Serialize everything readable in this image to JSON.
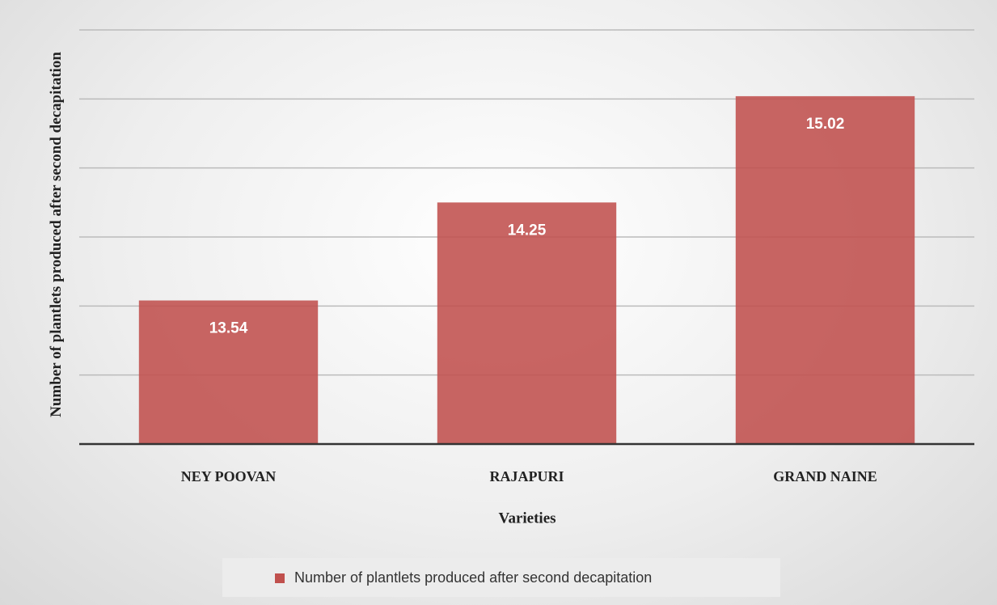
{
  "chart_data": {
    "type": "bar",
    "categories": [
      "NEY POOVAN",
      "RAJAPURI",
      "GRAND NAINE"
    ],
    "values": [
      13.54,
      14.25,
      15.02
    ],
    "color": "#c0504d",
    "x_label": "Varieties",
    "y_label": "Number of plantlets produced after second decapitation",
    "legend": "Number of plantlets produced after second decapitation",
    "ylim": [
      12.5,
      15.5
    ],
    "yticks": [
      12.5,
      13,
      13.5,
      14,
      14.5,
      15,
      15.5
    ],
    "grid": true,
    "legend_position": "bottom"
  }
}
